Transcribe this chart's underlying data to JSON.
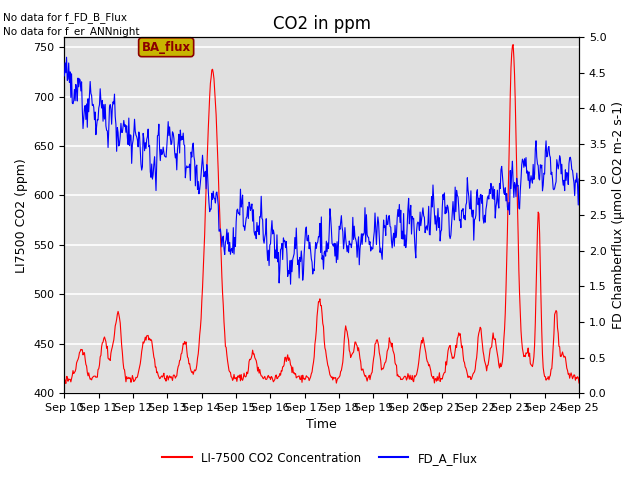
{
  "title": "CO2 in ppm",
  "xlabel": "Time",
  "ylabel_left": "LI7500 CO2 (ppm)",
  "ylabel_right": "FD Chamberflux (μmol CO2 m-2 s-1)",
  "ylim_left": [
    400,
    760
  ],
  "ylim_right": [
    0.0,
    5.0
  ],
  "yticks_left": [
    400,
    450,
    500,
    550,
    600,
    650,
    700,
    750
  ],
  "yticks_right": [
    0.0,
    0.5,
    1.0,
    1.5,
    2.0,
    2.5,
    3.0,
    3.5,
    4.0,
    4.5,
    5.0
  ],
  "xtick_labels": [
    "Sep 10",
    "Sep 11",
    "Sep 12",
    "Sep 13",
    "Sep 14",
    "Sep 15",
    "Sep 16",
    "Sep 17",
    "Sep 18",
    "Sep 19",
    "Sep 20",
    "Sep 21",
    "Sep 22",
    "Sep 23",
    "Sep 24",
    "Sep 25"
  ],
  "text_top_left_1": "No data for f_FD_B_Flux",
  "text_top_left_2": "No data for f_er_ANNnight",
  "annotation_box": "BA_flux",
  "legend_labels": [
    "LI-7500 CO2 Concentration",
    "FD_A_Flux"
  ],
  "line_red_color": "red",
  "line_blue_color": "blue",
  "background_color": "#e0e0e0",
  "grid_color": "white",
  "title_fontsize": 12,
  "label_fontsize": 9,
  "tick_fontsize": 8
}
